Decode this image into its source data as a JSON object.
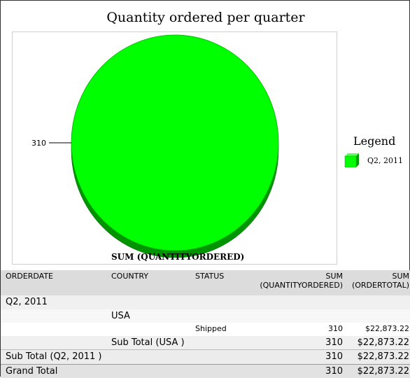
{
  "chart_data": {
    "type": "pie",
    "title": "Quantity ordered per quarter",
    "xlabel": "SUM (QUANTITYORDERED)",
    "legend_title": "Legend",
    "legend_position": "right",
    "slices": [
      {
        "label": "Q2, 2011",
        "value": 310,
        "value_label": "310",
        "color": "#00ff00"
      }
    ]
  },
  "table": {
    "headers": {
      "orderdate": "ORDERDATE",
      "country": "COUNTRY",
      "status": "STATUS",
      "qty_line1": "SUM",
      "qty_line2": "(QUANTITYORDERED)",
      "total_line1": "SUM",
      "total_line2": "(ORDERTOTAL)"
    },
    "group": "Q2, 2011",
    "country_group": "USA",
    "detail": {
      "status": "Shipped",
      "qty": "310",
      "total": "$22,873.22"
    },
    "subtotal_country": {
      "label": "Sub Total (USA )",
      "qty": "310",
      "total": "$22,873.22"
    },
    "subtotal_quarter": {
      "label": "Sub Total (Q2, 2011 )",
      "qty": "310",
      "total": "$22,873.22"
    },
    "grand_total": {
      "label": "Grand Total",
      "qty": "310",
      "total": "$22,873.22"
    }
  }
}
